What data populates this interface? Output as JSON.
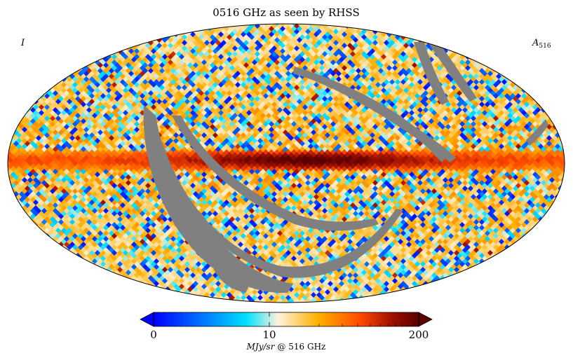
{
  "chart_data": {
    "type": "heatmap",
    "projection": "mollweide",
    "title": "0516 GHz as seen by RHSS",
    "stokes_label": "I",
    "map_label": "A",
    "map_label_sub": "516",
    "colorbar": {
      "scale": "log",
      "range": [
        0,
        200
      ],
      "ticks": [
        {
          "value": 0,
          "label": "0"
        },
        {
          "value": 10,
          "label": "10"
        },
        {
          "value": 200,
          "label": "200"
        }
      ],
      "unit_label": "MJy/sr",
      "unit_suffix": "@ 516 GHz",
      "extend": "both",
      "stops": [
        "#0000ff",
        "#0080ff",
        "#00e0ff",
        "#fff2dc",
        "#ffb000",
        "#ff4a00",
        "#a01000",
        "#5a0000"
      ]
    },
    "masked_color": "#808080"
  }
}
